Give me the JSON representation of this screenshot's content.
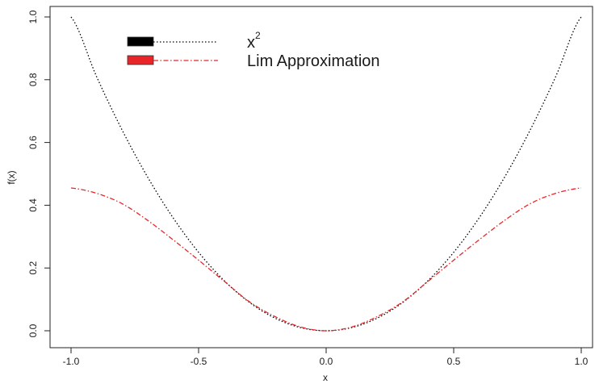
{
  "chart_data": {
    "type": "line",
    "title": "",
    "xlabel": "x",
    "ylabel": "f(x)",
    "xlim": [
      -1.0,
      1.0
    ],
    "ylim": [
      0.0,
      1.0
    ],
    "x_ticks": [
      "-1.0",
      "-0.5",
      "0.0",
      "0.5",
      "1.0"
    ],
    "y_ticks": [
      "0.0",
      "0.2",
      "0.4",
      "0.6",
      "0.8",
      "1.0"
    ],
    "grid": false,
    "legend": {
      "placement": "top-left",
      "entries": [
        {
          "base": "x",
          "sup": "2"
        },
        {
          "base": "Lim Approximation",
          "sup": ""
        }
      ]
    },
    "x": [
      -1.0,
      -0.9,
      -0.8,
      -0.7,
      -0.6,
      -0.5,
      -0.4,
      -0.3,
      -0.2,
      -0.1,
      0.0,
      0.1,
      0.2,
      0.3,
      0.4,
      0.5,
      0.6,
      0.7,
      0.8,
      0.9,
      1.0
    ],
    "series": [
      {
        "color": "#000000",
        "dash": "dotted",
        "values": [
          1.0,
          0.81,
          0.64,
          0.49,
          0.36,
          0.25,
          0.16,
          0.09,
          0.04,
          0.01,
          0.0,
          0.01,
          0.04,
          0.09,
          0.16,
          0.25,
          0.36,
          0.49,
          0.64,
          0.81,
          1.0
        ]
      },
      {
        "color": "#e8262a",
        "dash": "dotdash",
        "values": [
          0.455,
          0.438,
          0.405,
          0.352,
          0.29,
          0.225,
          0.158,
          0.092,
          0.045,
          0.012,
          0.0,
          0.012,
          0.045,
          0.092,
          0.158,
          0.225,
          0.29,
          0.352,
          0.405,
          0.438,
          0.455
        ]
      }
    ]
  }
}
